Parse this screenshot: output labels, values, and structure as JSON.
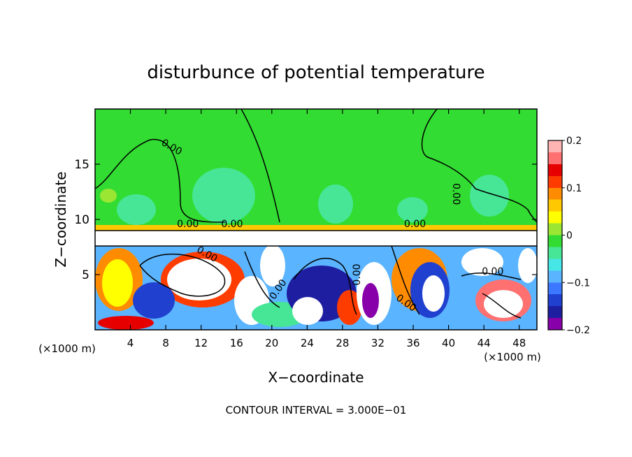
{
  "chart_data": {
    "type": "heatmap",
    "title": "disturbunce of potential temperature",
    "xlabel": "X−coordinate",
    "ylabel": "Z−coordinate",
    "xlim": [
      0,
      50
    ],
    "ylim": [
      0,
      20
    ],
    "x_ticks": [
      4,
      8,
      12,
      16,
      20,
      24,
      28,
      32,
      36,
      40,
      44,
      48
    ],
    "y_ticks": [
      5,
      10,
      15
    ],
    "x_unit_left": "(×1000 m)",
    "x_unit_right": "(×1000 m)",
    "footer": "CONTOUR INTERVAL = 3.000E−01",
    "colorbar": {
      "min": -0.2,
      "max": 0.2,
      "ticks": [
        {
          "value": 0.2,
          "label": "0.2"
        },
        {
          "value": 0.1,
          "label": "0.1"
        },
        {
          "value": 0,
          "label": "0"
        },
        {
          "value": -0.1,
          "label": "−0.1"
        },
        {
          "value": -0.2,
          "label": "−0.2"
        }
      ],
      "colors": [
        "#8800aa",
        "#1e1ea0",
        "#2040d0",
        "#3c78ff",
        "#5ab4ff",
        "#46e6e6",
        "#46e696",
        "#32dc32",
        "#9ae632",
        "#ffff00",
        "#ffc800",
        "#ff8c00",
        "#ff3c00",
        "#e60000",
        "#ff7070",
        "#ffb4b4"
      ]
    },
    "contour_labels": [
      {
        "text": "0.00",
        "x": 8.5,
        "y": 16.3,
        "rotate": 30
      },
      {
        "text": "0.00",
        "x": 40.5,
        "y": 12.3,
        "rotate": 90
      },
      {
        "text": "0.00",
        "x": 10.5,
        "y": 9.3,
        "rotate": 0
      },
      {
        "text": "0.00",
        "x": 15.5,
        "y": 9.3,
        "rotate": 0
      },
      {
        "text": "0.00",
        "x": 36.2,
        "y": 9.3,
        "rotate": 0
      },
      {
        "text": "0.00",
        "x": 12.5,
        "y": 6.6,
        "rotate": 30
      },
      {
        "text": "0.00",
        "x": 21.0,
        "y": 3.5,
        "rotate": -55
      },
      {
        "text": "0.00",
        "x": 30.0,
        "y": 5.0,
        "rotate": -90
      },
      {
        "text": "0.00",
        "x": 35.0,
        "y": 2.2,
        "rotate": 35
      },
      {
        "text": "0.00",
        "x": 45.0,
        "y": 5.0,
        "rotate": 0
      }
    ]
  }
}
